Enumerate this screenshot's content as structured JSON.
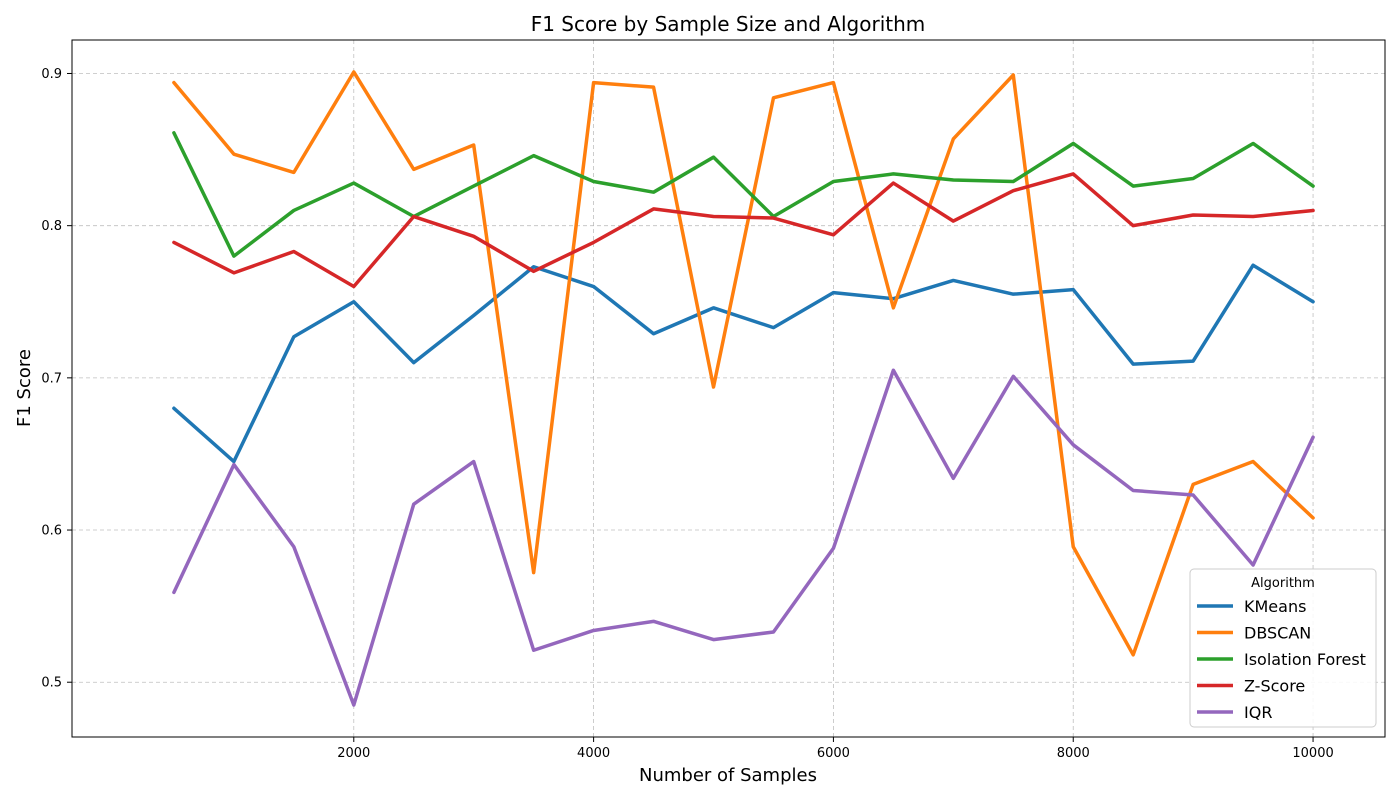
{
  "chart_data": {
    "type": "line",
    "title": "F1 Score by Sample Size and Algorithm",
    "xlabel": "Number of Samples",
    "ylabel": "F1 Score",
    "xlim": [
      -350,
      10600
    ],
    "ylim": [
      0.464,
      0.922
    ],
    "xticks": [
      2000,
      4000,
      6000,
      8000,
      10000
    ],
    "yticks": [
      0.5,
      0.6,
      0.7,
      0.8,
      0.9
    ],
    "grid": true,
    "legend": {
      "title": "Algorithm",
      "placement": "lower-right"
    },
    "x": [
      500,
      1000,
      1500,
      2000,
      2500,
      3000,
      3500,
      4000,
      4500,
      5000,
      5500,
      6000,
      6500,
      7000,
      7500,
      8000,
      8500,
      9000,
      9500,
      10000
    ],
    "series": [
      {
        "name": "KMeans",
        "color": "#1f77b4",
        "values": [
          0.68,
          0.645,
          0.727,
          0.75,
          0.71,
          0.741,
          0.773,
          0.76,
          0.729,
          0.746,
          0.733,
          0.756,
          0.752,
          0.764,
          0.755,
          0.758,
          0.709,
          0.711,
          0.774,
          0.75
        ]
      },
      {
        "name": "DBSCAN",
        "color": "#ff7f0e",
        "values": [
          0.894,
          0.847,
          0.835,
          0.901,
          0.837,
          0.853,
          0.572,
          0.894,
          0.891,
          0.694,
          0.884,
          0.894,
          0.746,
          0.857,
          0.899,
          0.589,
          0.518,
          0.63,
          0.645,
          0.608
        ]
      },
      {
        "name": "Isolation Forest",
        "color": "#2ca02c",
        "values": [
          0.861,
          0.78,
          0.81,
          0.828,
          0.806,
          0.826,
          0.846,
          0.829,
          0.822,
          0.845,
          0.806,
          0.829,
          0.834,
          0.83,
          0.829,
          0.854,
          0.826,
          0.831,
          0.854,
          0.826
        ]
      },
      {
        "name": "Z-Score",
        "color": "#d62728",
        "values": [
          0.789,
          0.769,
          0.783,
          0.76,
          0.806,
          0.793,
          0.77,
          0.789,
          0.811,
          0.806,
          0.805,
          0.794,
          0.828,
          0.803,
          0.823,
          0.834,
          0.8,
          0.807,
          0.806,
          0.81
        ]
      },
      {
        "name": "IQR",
        "color": "#9467bd",
        "values": [
          0.559,
          0.643,
          0.589,
          0.485,
          0.617,
          0.645,
          0.521,
          0.534,
          0.54,
          0.528,
          0.533,
          0.588,
          0.705,
          0.634,
          0.701,
          0.656,
          0.626,
          0.623,
          0.577,
          0.661
        ]
      }
    ]
  }
}
